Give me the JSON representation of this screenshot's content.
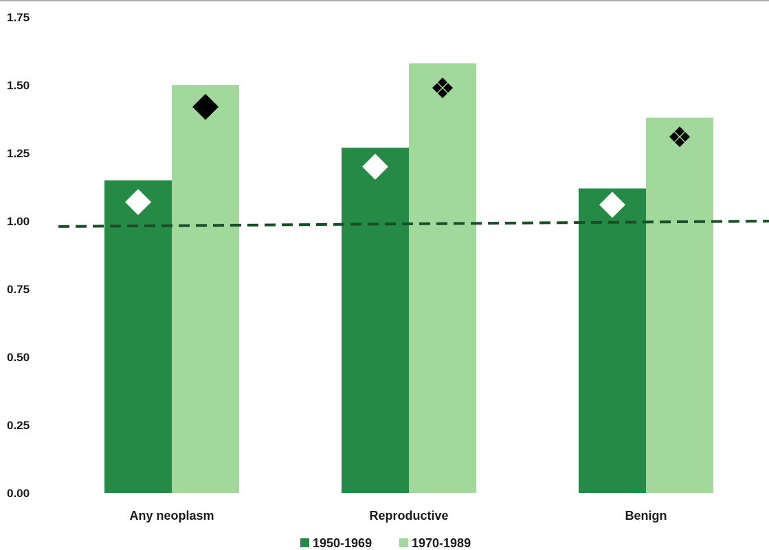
{
  "chart_data": {
    "type": "bar",
    "title": "",
    "xlabel": "",
    "ylabel": "",
    "ylim": [
      0,
      1.75
    ],
    "yticks": [
      "0.00",
      "0.25",
      "0.50",
      "0.75",
      "1.00",
      "1.25",
      "1.50",
      "1.75"
    ],
    "ytick_values": [
      0,
      0.25,
      0.5,
      0.75,
      1.0,
      1.25,
      1.5,
      1.75
    ],
    "categories": [
      "Any neoplasm",
      "Reproductive",
      "Benign"
    ],
    "series": [
      {
        "name": "1950-1969",
        "color": "#248a46",
        "values": [
          1.15,
          1.27,
          1.12
        ]
      },
      {
        "name": "1970-1989",
        "color": "#a3d89c",
        "values": [
          1.5,
          1.58,
          1.38
        ]
      }
    ],
    "markers": [
      {
        "category": "Any neoplasm",
        "series": "1950-1969",
        "value": 1.07,
        "marker": "diamond-white"
      },
      {
        "category": "Any neoplasm",
        "series": "1970-1989",
        "value": 1.42,
        "marker": "diamond-black"
      },
      {
        "category": "Reproductive",
        "series": "1950-1969",
        "value": 1.2,
        "marker": "diamond-white"
      },
      {
        "category": "Reproductive",
        "series": "1970-1989",
        "value": 1.49,
        "marker": "quad-diamond-black"
      },
      {
        "category": "Benign",
        "series": "1950-1969",
        "value": 1.06,
        "marker": "diamond-white"
      },
      {
        "category": "Benign",
        "series": "1970-1989",
        "value": 1.31,
        "marker": "quad-diamond-black"
      }
    ],
    "reference_line": {
      "style": "dashed",
      "color": "#1a4d2a",
      "y_start": 0.98,
      "y_end": 1.0
    },
    "grid": false,
    "legend": "bottom"
  }
}
